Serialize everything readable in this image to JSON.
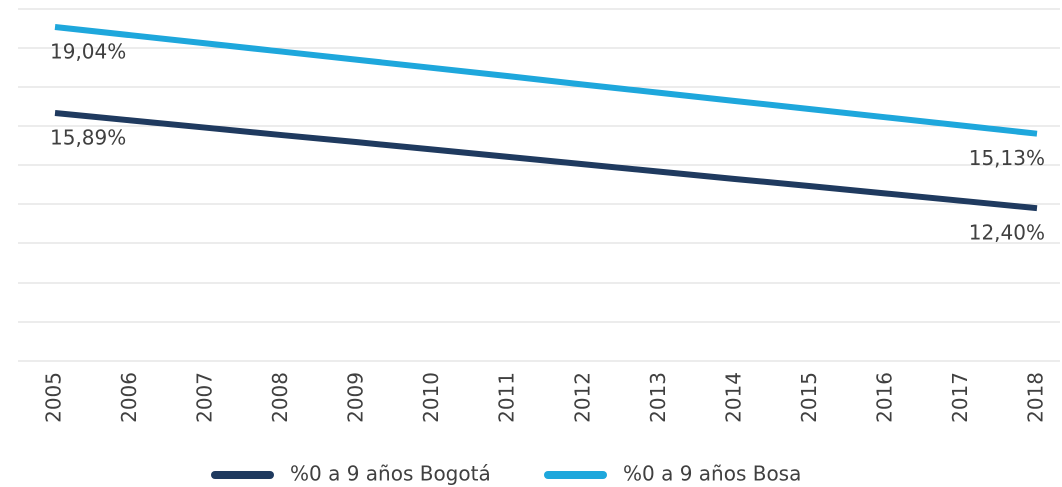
{
  "chart_data": {
    "type": "line",
    "categories": [
      "2005",
      "2006",
      "2007",
      "2008",
      "2009",
      "2010",
      "2011",
      "2012",
      "2013",
      "2014",
      "2015",
      "2016",
      "2017",
      "2018"
    ],
    "series": [
      {
        "name": "%0 a 9 años Bogotá",
        "color": "#1f3a5f",
        "values": [
          15.89,
          15.62,
          15.35,
          15.08,
          14.82,
          14.55,
          14.28,
          14.01,
          13.74,
          13.47,
          13.21,
          12.94,
          12.67,
          12.4
        ],
        "value_labels": [
          "15,89%",
          null,
          null,
          null,
          null,
          null,
          null,
          null,
          null,
          null,
          null,
          null,
          null,
          "12,40%"
        ]
      },
      {
        "name": "%0 a 9 años Bosa",
        "color": "#1ea7dc",
        "values": [
          19.04,
          18.74,
          18.44,
          18.14,
          17.84,
          17.54,
          17.24,
          16.93,
          16.63,
          16.33,
          16.03,
          15.73,
          15.43,
          15.13
        ],
        "value_labels": [
          "19,04%",
          null,
          null,
          null,
          null,
          null,
          null,
          null,
          null,
          null,
          null,
          null,
          null,
          "15,13%"
        ]
      }
    ],
    "ylim": [
      6.8,
      19.7
    ],
    "grid": true,
    "legend": "bottom"
  }
}
